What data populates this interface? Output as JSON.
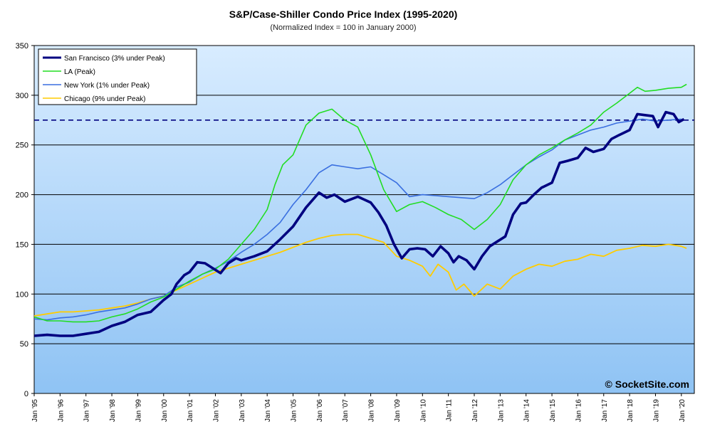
{
  "chart_data": {
    "type": "line",
    "title": "S&P/Case-Shiller Condo Price Index (1995-2020)",
    "subtitle": "(Normalized Index = 100 in January 2000)",
    "xlabel": "",
    "ylabel": "",
    "ylim": [
      0,
      350
    ],
    "yticks": [
      0,
      50,
      100,
      150,
      200,
      250,
      300,
      350
    ],
    "xlim": [
      1995.0,
      2020.5
    ],
    "xtick_labels": [
      "Jan '95",
      "Jan '96",
      "Jan '97",
      "Jan '98",
      "Jan '99",
      "Jan '00",
      "Jan '01",
      "Jan '02",
      "Jan '03",
      "Jan '04",
      "Jan '05",
      "Jan '06",
      "Jan '07",
      "Jan '08",
      "Jan '09",
      "Jan '10",
      "Jan '11",
      "Jan '12",
      "Jan '13",
      "Jan '14",
      "Jan '15",
      "Jan '16",
      "Jan '17",
      "Jan '18",
      "Jan '19",
      "Jan '20"
    ],
    "grid": true,
    "legend_position": "top-left",
    "reference_line": {
      "y": 275,
      "style": "dashed",
      "color": "#000080"
    },
    "watermark": "© SocketSite.com",
    "series": [
      {
        "name": "San Francisco (3% under Peak)",
        "color": "#000080",
        "points": [
          [
            1995.0,
            58
          ],
          [
            1995.5,
            59
          ],
          [
            1996.0,
            58
          ],
          [
            1996.5,
            58
          ],
          [
            1997.0,
            60
          ],
          [
            1997.5,
            62
          ],
          [
            1998.0,
            68
          ],
          [
            1998.5,
            72
          ],
          [
            1999.0,
            79
          ],
          [
            1999.5,
            82
          ],
          [
            2000.0,
            94
          ],
          [
            2000.3,
            100
          ],
          [
            2000.5,
            110
          ],
          [
            2000.8,
            119
          ],
          [
            2001.0,
            122
          ],
          [
            2001.3,
            132
          ],
          [
            2001.6,
            131
          ],
          [
            2001.9,
            126
          ],
          [
            2002.2,
            121
          ],
          [
            2002.5,
            131
          ],
          [
            2002.8,
            136
          ],
          [
            2003.0,
            134
          ],
          [
            2003.5,
            138
          ],
          [
            2004.0,
            143
          ],
          [
            2004.5,
            155
          ],
          [
            2005.0,
            168
          ],
          [
            2005.5,
            187
          ],
          [
            2006.0,
            202
          ],
          [
            2006.3,
            197
          ],
          [
            2006.6,
            200
          ],
          [
            2007.0,
            193
          ],
          [
            2007.5,
            198
          ],
          [
            2008.0,
            192
          ],
          [
            2008.3,
            182
          ],
          [
            2008.6,
            169
          ],
          [
            2008.9,
            150
          ],
          [
            2009.2,
            136
          ],
          [
            2009.5,
            145
          ],
          [
            2009.8,
            146
          ],
          [
            2010.1,
            145
          ],
          [
            2010.4,
            138
          ],
          [
            2010.7,
            148
          ],
          [
            2011.0,
            141
          ],
          [
            2011.2,
            132
          ],
          [
            2011.4,
            138
          ],
          [
            2011.7,
            134
          ],
          [
            2012.0,
            125
          ],
          [
            2012.3,
            138
          ],
          [
            2012.6,
            148
          ],
          [
            2012.9,
            153
          ],
          [
            2013.2,
            158
          ],
          [
            2013.5,
            180
          ],
          [
            2013.8,
            191
          ],
          [
            2014.0,
            192
          ],
          [
            2014.3,
            200
          ],
          [
            2014.6,
            207
          ],
          [
            2015.0,
            212
          ],
          [
            2015.3,
            232
          ],
          [
            2015.6,
            234
          ],
          [
            2016.0,
            237
          ],
          [
            2016.3,
            247
          ],
          [
            2016.6,
            243
          ],
          [
            2017.0,
            246
          ],
          [
            2017.3,
            256
          ],
          [
            2017.6,
            260
          ],
          [
            2018.0,
            265
          ],
          [
            2018.3,
            281
          ],
          [
            2018.6,
            280
          ],
          [
            2018.9,
            279
          ],
          [
            2019.1,
            268
          ],
          [
            2019.4,
            283
          ],
          [
            2019.7,
            281
          ],
          [
            2019.9,
            273
          ],
          [
            2020.1,
            276
          ]
        ]
      },
      {
        "name": "LA (Peak)",
        "color": "#22DD22",
        "points": [
          [
            1995.0,
            77
          ],
          [
            1995.5,
            73
          ],
          [
            1996.0,
            73
          ],
          [
            1996.5,
            72
          ],
          [
            1997.0,
            72
          ],
          [
            1997.5,
            73
          ],
          [
            1998.0,
            77
          ],
          [
            1998.5,
            80
          ],
          [
            1999.0,
            85
          ],
          [
            1999.5,
            92
          ],
          [
            2000.0,
            97
          ],
          [
            2000.5,
            105
          ],
          [
            2001.0,
            113
          ],
          [
            2001.5,
            120
          ],
          [
            2002.0,
            125
          ],
          [
            2002.5,
            135
          ],
          [
            2003.0,
            150
          ],
          [
            2003.5,
            165
          ],
          [
            2004.0,
            185
          ],
          [
            2004.3,
            210
          ],
          [
            2004.6,
            230
          ],
          [
            2005.0,
            240
          ],
          [
            2005.5,
            270
          ],
          [
            2006.0,
            282
          ],
          [
            2006.5,
            286
          ],
          [
            2007.0,
            275
          ],
          [
            2007.5,
            268
          ],
          [
            2008.0,
            240
          ],
          [
            2008.5,
            205
          ],
          [
            2009.0,
            183
          ],
          [
            2009.5,
            190
          ],
          [
            2010.0,
            193
          ],
          [
            2010.5,
            187
          ],
          [
            2011.0,
            180
          ],
          [
            2011.5,
            175
          ],
          [
            2012.0,
            165
          ],
          [
            2012.5,
            175
          ],
          [
            2013.0,
            190
          ],
          [
            2013.5,
            215
          ],
          [
            2014.0,
            230
          ],
          [
            2014.5,
            240
          ],
          [
            2015.0,
            247
          ],
          [
            2015.5,
            255
          ],
          [
            2016.0,
            262
          ],
          [
            2016.5,
            270
          ],
          [
            2017.0,
            283
          ],
          [
            2017.5,
            292
          ],
          [
            2018.0,
            302
          ],
          [
            2018.3,
            308
          ],
          [
            2018.6,
            304
          ],
          [
            2019.0,
            305
          ],
          [
            2019.5,
            307
          ],
          [
            2020.0,
            308
          ],
          [
            2020.2,
            311
          ]
        ]
      },
      {
        "name": "New York (1% under Peak)",
        "color": "#3A6FE0",
        "points": [
          [
            1995.0,
            75
          ],
          [
            1995.5,
            74
          ],
          [
            1996.0,
            76
          ],
          [
            1996.5,
            77
          ],
          [
            1997.0,
            79
          ],
          [
            1997.5,
            82
          ],
          [
            1998.0,
            84
          ],
          [
            1998.5,
            86
          ],
          [
            1999.0,
            90
          ],
          [
            1999.5,
            95
          ],
          [
            2000.0,
            98
          ],
          [
            2000.5,
            107
          ],
          [
            2001.0,
            112
          ],
          [
            2001.5,
            120
          ],
          [
            2002.0,
            126
          ],
          [
            2002.5,
            133
          ],
          [
            2003.0,
            142
          ],
          [
            2003.5,
            150
          ],
          [
            2004.0,
            160
          ],
          [
            2004.5,
            172
          ],
          [
            2005.0,
            190
          ],
          [
            2005.5,
            205
          ],
          [
            2006.0,
            222
          ],
          [
            2006.5,
            230
          ],
          [
            2007.0,
            228
          ],
          [
            2007.5,
            226
          ],
          [
            2008.0,
            228
          ],
          [
            2008.5,
            220
          ],
          [
            2009.0,
            212
          ],
          [
            2009.5,
            198
          ],
          [
            2010.0,
            200
          ],
          [
            2010.5,
            199
          ],
          [
            2011.0,
            198
          ],
          [
            2011.5,
            197
          ],
          [
            2012.0,
            196
          ],
          [
            2012.5,
            202
          ],
          [
            2013.0,
            210
          ],
          [
            2013.5,
            220
          ],
          [
            2014.0,
            230
          ],
          [
            2014.5,
            238
          ],
          [
            2015.0,
            245
          ],
          [
            2015.5,
            255
          ],
          [
            2016.0,
            260
          ],
          [
            2016.5,
            265
          ],
          [
            2017.0,
            268
          ],
          [
            2017.5,
            272
          ],
          [
            2018.0,
            274
          ],
          [
            2018.5,
            276
          ],
          [
            2019.0,
            274
          ],
          [
            2019.5,
            275
          ],
          [
            2020.0,
            276
          ]
        ]
      },
      {
        "name": "Chicago (9% under Peak)",
        "color": "#FFCC00",
        "points": [
          [
            1995.0,
            78
          ],
          [
            1995.5,
            80
          ],
          [
            1996.0,
            82
          ],
          [
            1996.5,
            82
          ],
          [
            1997.0,
            83
          ],
          [
            1997.5,
            84
          ],
          [
            1998.0,
            86
          ],
          [
            1998.5,
            88
          ],
          [
            1999.0,
            91
          ],
          [
            1999.5,
            95
          ],
          [
            2000.0,
            98
          ],
          [
            2000.5,
            104
          ],
          [
            2001.0,
            110
          ],
          [
            2001.5,
            116
          ],
          [
            2002.0,
            122
          ],
          [
            2002.5,
            126
          ],
          [
            2003.0,
            130
          ],
          [
            2003.5,
            134
          ],
          [
            2004.0,
            138
          ],
          [
            2004.5,
            142
          ],
          [
            2005.0,
            147
          ],
          [
            2005.5,
            152
          ],
          [
            2006.0,
            156
          ],
          [
            2006.5,
            159
          ],
          [
            2007.0,
            160
          ],
          [
            2007.5,
            160
          ],
          [
            2008.0,
            156
          ],
          [
            2008.5,
            152
          ],
          [
            2009.0,
            138
          ],
          [
            2009.5,
            134
          ],
          [
            2010.0,
            128
          ],
          [
            2010.3,
            118
          ],
          [
            2010.6,
            130
          ],
          [
            2011.0,
            122
          ],
          [
            2011.3,
            104
          ],
          [
            2011.6,
            110
          ],
          [
            2012.0,
            98
          ],
          [
            2012.5,
            110
          ],
          [
            2013.0,
            105
          ],
          [
            2013.5,
            118
          ],
          [
            2014.0,
            125
          ],
          [
            2014.5,
            130
          ],
          [
            2015.0,
            128
          ],
          [
            2015.5,
            133
          ],
          [
            2016.0,
            135
          ],
          [
            2016.5,
            140
          ],
          [
            2017.0,
            138
          ],
          [
            2017.5,
            144
          ],
          [
            2018.0,
            146
          ],
          [
            2018.5,
            149
          ],
          [
            2019.0,
            148
          ],
          [
            2019.5,
            150
          ],
          [
            2020.0,
            148
          ],
          [
            2020.2,
            146
          ]
        ]
      }
    ]
  }
}
